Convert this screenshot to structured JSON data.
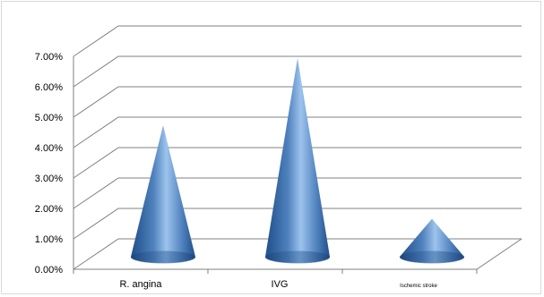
{
  "chart_data": {
    "type": "bar",
    "style": "3d-cone",
    "title": "",
    "xlabel": "",
    "ylabel": "",
    "categories": [
      "R. angina",
      "IVG",
      "Ischemic stroke"
    ],
    "values": [
      4.5,
      6.8,
      1.3
    ],
    "value_unit": "%",
    "ylim": [
      0,
      7
    ],
    "y_ticks": [
      "0.00%",
      "1.00%",
      "2.00%",
      "3.00%",
      "4.00%",
      "5.00%",
      "6.00%",
      "7.00%"
    ],
    "grid": true,
    "legend": "none",
    "colors": {
      "cone_dark": "#1f4e8a",
      "cone_mid": "#4f81bd",
      "cone_light": "#9cc3ec",
      "gridline": "#808080",
      "axis": "#7f7f7f"
    }
  }
}
